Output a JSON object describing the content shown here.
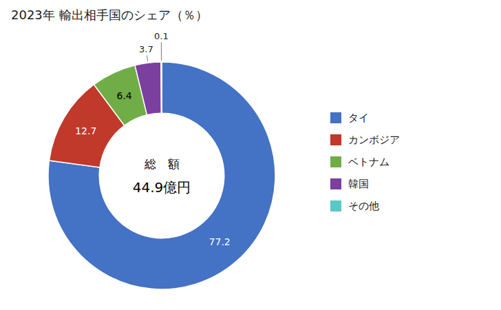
{
  "chart_data": {
    "type": "donut",
    "title": "2023年 輸出相手国のシェア（％）",
    "categories": [
      "タイ",
      "カンボジア",
      "ベトナム",
      "韓国",
      "その他"
    ],
    "values": [
      77.2,
      12.7,
      6.4,
      3.7,
      0.1
    ],
    "colors": [
      "#4472C4",
      "#C0392B",
      "#70AD47",
      "#7B3F9E",
      "#5BC8C8"
    ],
    "annotations": [
      "総　額",
      "44.9億円"
    ],
    "data_labels": true,
    "legend": "right"
  }
}
